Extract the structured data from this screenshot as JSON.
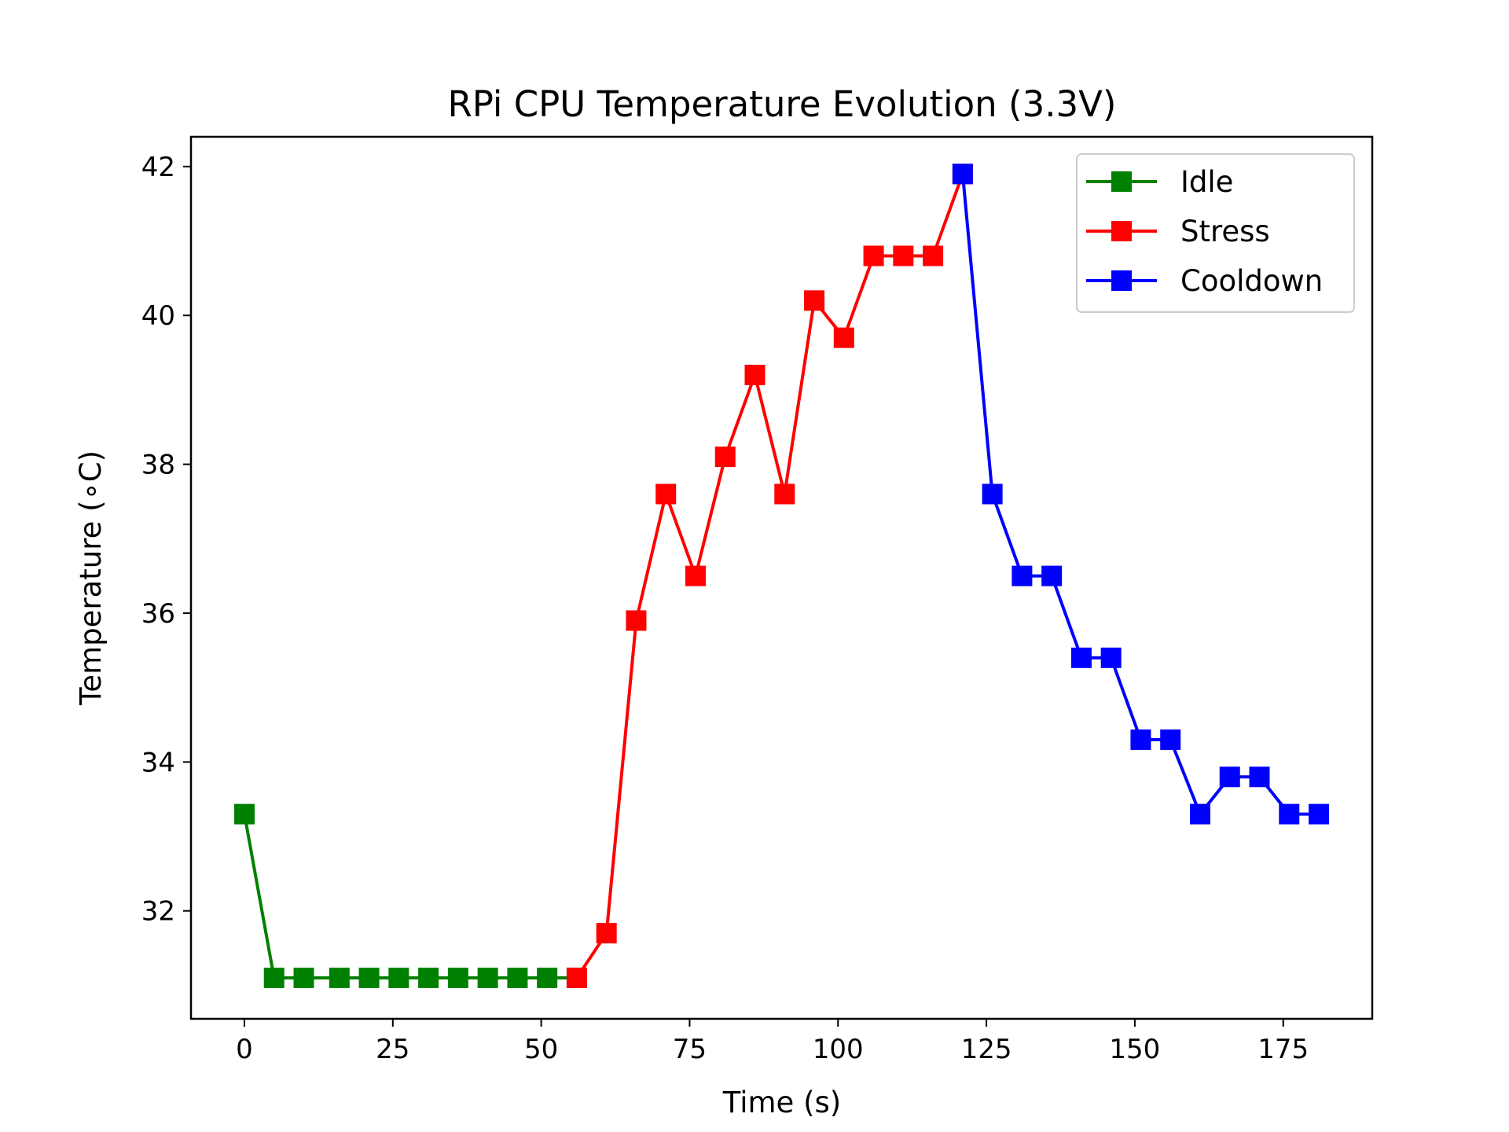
{
  "chart_data": {
    "type": "line",
    "title": "RPi CPU Temperature Evolution (3.3V)",
    "xlabel": "Time (s)",
    "ylabel": "Temperature (∘C)",
    "xlim": [
      -9,
      190
    ],
    "ylim": [
      30.55,
      42.4
    ],
    "xticks": [
      0,
      25,
      50,
      75,
      100,
      125,
      150,
      175
    ],
    "yticks": [
      32,
      34,
      36,
      38,
      40,
      42
    ],
    "grid": false,
    "legend_position": "top-right",
    "marker": "square",
    "series": [
      {
        "name": "Idle",
        "color": "#008000",
        "x": [
          0,
          5,
          10,
          16,
          21,
          26,
          31,
          36,
          41,
          46,
          51,
          56
        ],
        "y": [
          33.3,
          31.1,
          31.1,
          31.1,
          31.1,
          31.1,
          31.1,
          31.1,
          31.1,
          31.1,
          31.1,
          31.1
        ]
      },
      {
        "name": "Stress",
        "color": "#ff0000",
        "x": [
          56,
          61,
          66,
          71,
          76,
          81,
          86,
          91,
          96,
          101,
          106,
          111,
          116,
          121
        ],
        "y": [
          31.1,
          31.7,
          35.9,
          37.6,
          36.5,
          38.1,
          39.2,
          37.6,
          40.2,
          39.7,
          40.8,
          40.8,
          40.8,
          41.9
        ]
      },
      {
        "name": "Cooldown",
        "color": "#0000ff",
        "x": [
          121,
          126,
          131,
          136,
          141,
          146,
          151,
          156,
          161,
          166,
          171,
          176,
          181
        ],
        "y": [
          41.9,
          37.6,
          36.5,
          36.5,
          35.4,
          35.4,
          34.3,
          34.3,
          33.3,
          33.8,
          33.8,
          33.3,
          33.3
        ]
      }
    ]
  }
}
